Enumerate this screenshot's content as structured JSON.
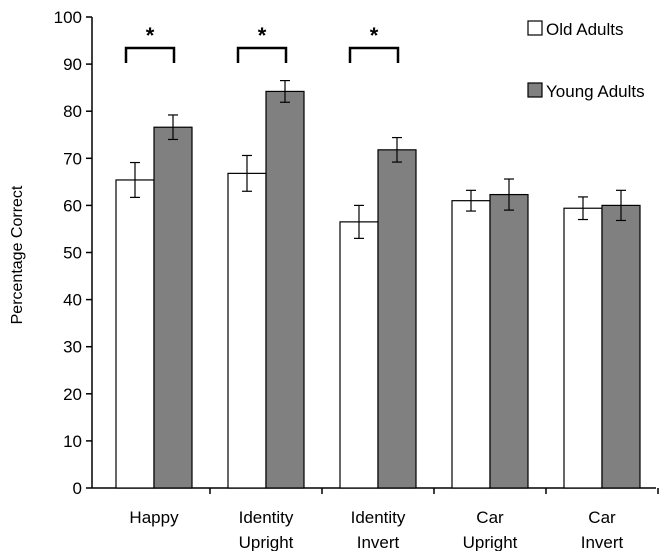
{
  "chart_data": {
    "type": "bar",
    "ylabel": "Percentage Correct",
    "xlabel": "",
    "ylim": [
      0,
      100
    ],
    "yticks": [
      0,
      10,
      20,
      30,
      40,
      50,
      60,
      70,
      80,
      90,
      100
    ],
    "grid": false,
    "legend_position": "top-right",
    "categories": [
      [
        "Happy"
      ],
      [
        "Identity",
        "Upright"
      ],
      [
        "Identity",
        "Invert"
      ],
      [
        "Car",
        "Upright"
      ],
      [
        "Car",
        "Invert"
      ]
    ],
    "series": [
      {
        "name": "Old Adults",
        "color": "#ffffff",
        "values": [
          65.4,
          66.8,
          56.5,
          61.0,
          59.4
        ],
        "errors": [
          3.7,
          3.8,
          3.5,
          2.2,
          2.4
        ]
      },
      {
        "name": "Young Adults",
        "color": "#808080",
        "values": [
          76.6,
          84.2,
          71.8,
          62.3,
          60.0
        ],
        "errors": [
          2.6,
          2.3,
          2.6,
          3.3,
          3.2
        ]
      }
    ],
    "significance": [
      {
        "category_index": 0,
        "label": "*"
      },
      {
        "category_index": 1,
        "label": "*"
      },
      {
        "category_index": 2,
        "label": "*"
      }
    ]
  }
}
